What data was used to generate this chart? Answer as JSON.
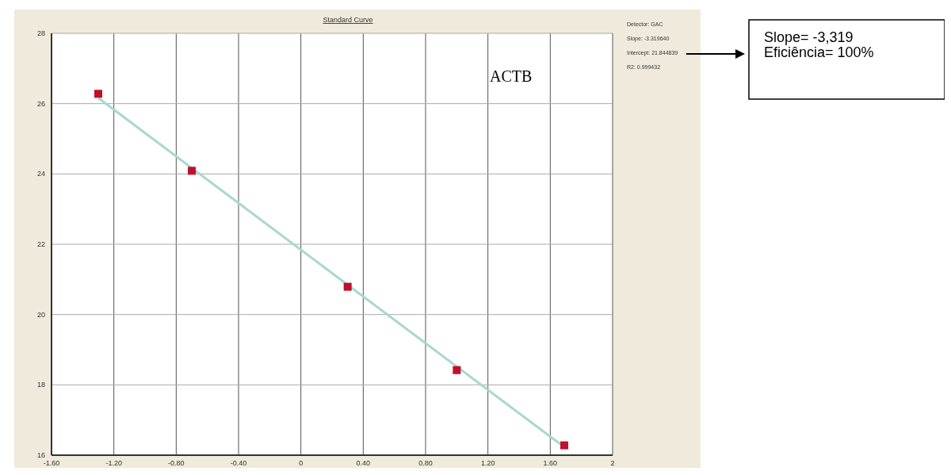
{
  "chart_data": {
    "type": "scatter",
    "title": "Standard Curve",
    "x": [
      -1.3,
      -0.7,
      0.3,
      1.0,
      1.69
    ],
    "series": [
      {
        "color": "#c0102a",
        "values": [
          26.28,
          24.09,
          20.79,
          18.42,
          16.28
        ],
        "marker": "square"
      },
      {
        "type": "line",
        "color": "#a8d8d0",
        "x": [
          -1.3,
          1.69
        ],
        "values": [
          26.16,
          16.23
        ]
      }
    ],
    "xlim": [
      -1.6,
      2
    ],
    "xticks": [
      {
        "value": -1.6,
        "label": "-1.60"
      },
      {
        "value": -1.2,
        "label": "-1.20"
      },
      {
        "value": -0.8,
        "label": "-0.80"
      },
      {
        "value": -0.4,
        "label": "-0.40"
      },
      0,
      {
        "value": 0.4,
        "label": "0.40"
      },
      {
        "value": 0.8,
        "label": "0.80"
      },
      {
        "value": 1.2,
        "label": "1.20"
      },
      {
        "value": 1.6,
        "label": "1.60"
      },
      2
    ],
    "ylim": [
      16,
      28
    ],
    "yticks": [
      16,
      18,
      20,
      22,
      24,
      26,
      28
    ],
    "grid": true,
    "annotations": [
      "ACTB",
      "Detector: GAC",
      "Slope: -3.319640",
      "Intercept: 21.844839",
      "R2: 0.999432",
      "Slope= -3,319",
      "Eficiência= 100%"
    ]
  }
}
